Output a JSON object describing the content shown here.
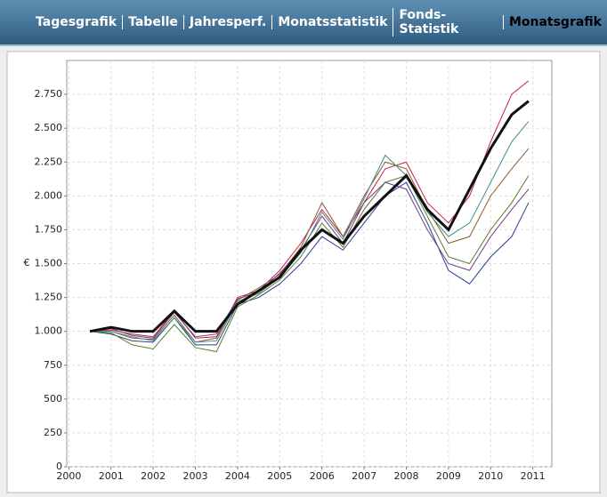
{
  "header": {
    "tabs": [
      "Tagesgrafik",
      "Tabelle",
      "Jahresperf.",
      "Monatsstatistik",
      "Fonds-Statistik",
      "Monatsgrafik"
    ],
    "active": 5
  },
  "chart_data": {
    "type": "line",
    "ylabel": "€",
    "x": [
      2000.5,
      2001,
      2001.5,
      2002,
      2002.5,
      2003,
      2003.5,
      2004,
      2004.5,
      2005,
      2005.5,
      2006,
      2006.5,
      2007,
      2007.5,
      2008,
      2008.5,
      2009,
      2009.5,
      2010,
      2010.5,
      2010.9
    ],
    "series": [
      {
        "color": "#c8204a",
        "values": [
          1000,
          1010,
          980,
          960,
          1150,
          950,
          960,
          1250,
          1300,
          1450,
          1650,
          1900,
          1700,
          1950,
          2200,
          2250,
          1950,
          1800,
          2000,
          2400,
          2750,
          2850
        ]
      },
      {
        "color": "#2a3f8f",
        "values": [
          1000,
          980,
          930,
          920,
          1100,
          900,
          900,
          1200,
          1250,
          1350,
          1500,
          1700,
          1600,
          1800,
          2000,
          2100,
          1800,
          1450,
          1350,
          1550,
          1700,
          1950
        ]
      },
      {
        "color": "#5c7d2a",
        "values": [
          1000,
          990,
          900,
          870,
          1050,
          880,
          850,
          1180,
          1270,
          1380,
          1550,
          1800,
          1620,
          1900,
          2100,
          2150,
          1850,
          1550,
          1500,
          1750,
          1950,
          2150
        ]
      },
      {
        "color": "#8a5a2b",
        "values": [
          1000,
          1000,
          950,
          940,
          1120,
          920,
          950,
          1230,
          1320,
          1420,
          1620,
          1950,
          1700,
          2000,
          2250,
          2200,
          1900,
          1650,
          1700,
          2000,
          2200,
          2350
        ]
      },
      {
        "color": "#7a3a8c",
        "values": [
          1000,
          1020,
          970,
          950,
          1140,
          960,
          980,
          1240,
          1290,
          1430,
          1600,
          1850,
          1650,
          1950,
          2100,
          2050,
          1750,
          1500,
          1450,
          1700,
          1900,
          2050
        ]
      },
      {
        "color": "#3f8f8a",
        "values": [
          1000,
          1000,
          960,
          930,
          1100,
          920,
          930,
          1220,
          1280,
          1400,
          1580,
          1880,
          1680,
          1980,
          2300,
          2150,
          1880,
          1700,
          1800,
          2100,
          2400,
          2550
        ]
      },
      {
        "color": "#111111",
        "bold": true,
        "values": [
          1000,
          1030,
          1000,
          1000,
          1150,
          1000,
          1000,
          1200,
          1300,
          1400,
          1600,
          1750,
          1650,
          1850,
          2000,
          2150,
          1900,
          1750,
          2050,
          2350,
          2600,
          2700
        ]
      }
    ],
    "xlim": [
      1999.95,
      2011.45
    ],
    "xticks": [
      2000,
      2001,
      2002,
      2003,
      2004,
      2005,
      2006,
      2007,
      2008,
      2009,
      2010,
      2011
    ],
    "ylim": [
      0,
      3000
    ],
    "yticks": [
      0,
      250,
      500,
      750,
      {
        "value": 1000,
        "label": "1.000"
      },
      {
        "value": 1250,
        "label": "1.250"
      },
      {
        "value": 1500,
        "label": "1.500"
      },
      {
        "value": 1750,
        "label": "1.750"
      },
      {
        "value": 2000,
        "label": "2.000"
      },
      {
        "value": 2250,
        "label": "2.250"
      },
      {
        "value": 2500,
        "label": "2.500"
      },
      {
        "value": 2750,
        "label": "2.750"
      }
    ],
    "grid": true
  }
}
